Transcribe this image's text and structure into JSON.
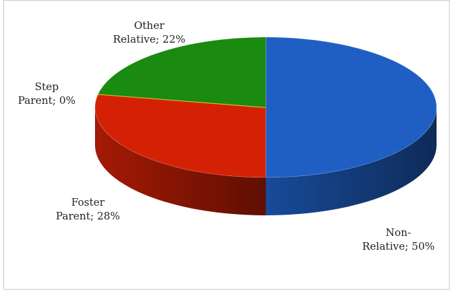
{
  "chart_data": {
    "type": "pie",
    "title": "",
    "style": "3d",
    "slices": [
      {
        "name_line1": "Non-",
        "name_line2": "Relative",
        "value": 50,
        "color": "#1f5fc4"
      },
      {
        "name_line1": "Foster",
        "name_line2": "Parent",
        "value": 28,
        "color": "#d42106"
      },
      {
        "name_line1": "Step",
        "name_line2": "Parent",
        "value": 0,
        "color": "#e0a800"
      },
      {
        "name_line1": "Other",
        "name_line2": "Relative",
        "value": 22,
        "color": "#1b8a10"
      }
    ],
    "legend": "none",
    "label_format": "category; percent"
  }
}
